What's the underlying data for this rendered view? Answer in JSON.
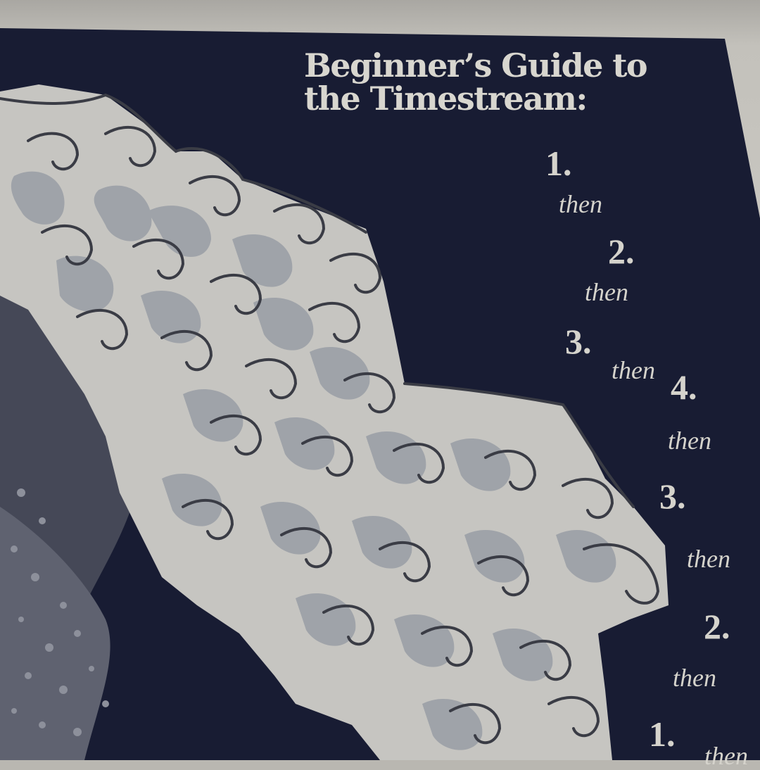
{
  "title": {
    "line1": "Beginner’s Guide to",
    "line2": "the Timestream:"
  },
  "steps": [
    {
      "number": "1.",
      "connector": "then"
    },
    {
      "number": "2.",
      "connector": "then"
    },
    {
      "number": "3.",
      "connector": "then"
    },
    {
      "number": "4.",
      "connector": "then"
    },
    {
      "number": "3.",
      "connector": "then"
    },
    {
      "number": "2.",
      "connector": "then"
    },
    {
      "number": "1.",
      "connector": "then"
    }
  ],
  "colors": {
    "panel": "#181c33",
    "paper": "#c9c7c1",
    "text": "#d5d3cc",
    "foam": "#c6c5c1",
    "foam_shadow": "#9fa3a9",
    "wave_dark": "#454857",
    "ink": "#3a3c45"
  },
  "icons": [
    "great-wave-illustration"
  ]
}
